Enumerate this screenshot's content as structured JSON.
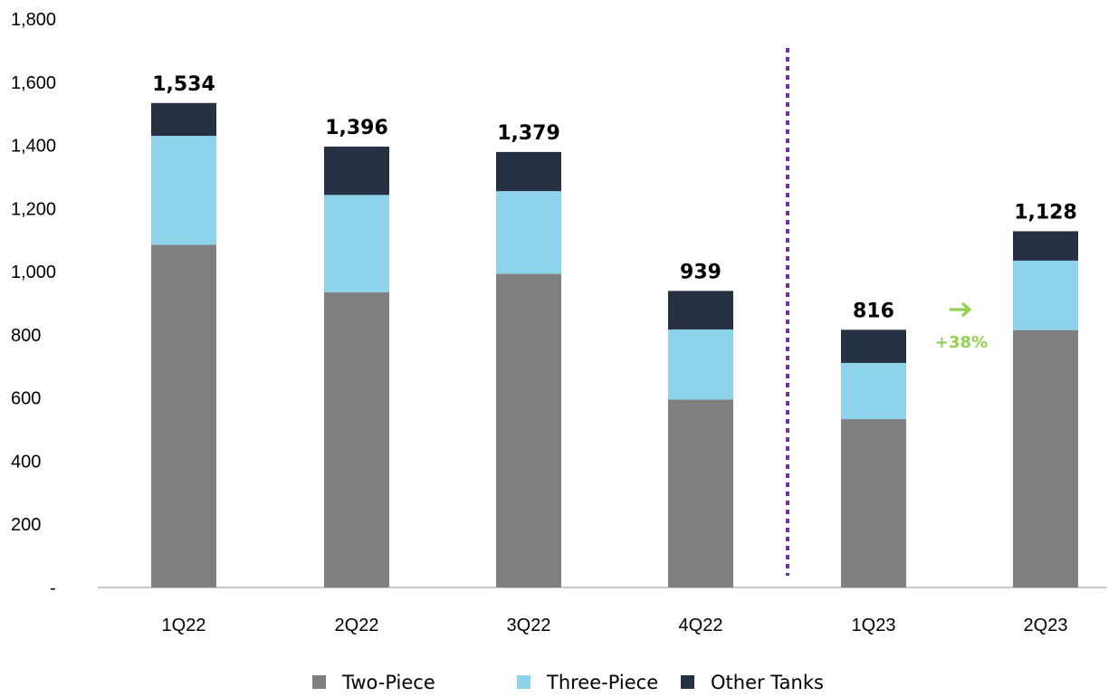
{
  "chart_data": {
    "type": "bar",
    "stacked": true,
    "categories": [
      "1Q22",
      "2Q22",
      "3Q22",
      "4Q22",
      "1Q23",
      "2Q23"
    ],
    "series": [
      {
        "name": "Two-Piece",
        "color": "#7f7f7f",
        "values": [
          1085,
          935,
          993,
          595,
          533,
          815
        ]
      },
      {
        "name": "Three-Piece",
        "color": "#8dd3ec",
        "values": [
          345,
          308,
          262,
          222,
          178,
          220
        ]
      },
      {
        "name": "Other Tanks",
        "color": "#263143",
        "values": [
          104,
          153,
          124,
          122,
          105,
          93
        ]
      }
    ],
    "totals": [
      "1,534",
      "1,396",
      "1,379",
      "939",
      "816",
      "1,128"
    ],
    "ylim": [
      0,
      1800
    ],
    "yticks": [
      0,
      200,
      400,
      600,
      800,
      1000,
      1200,
      1400,
      1600,
      1800
    ],
    "ytick_labels": [
      "-",
      "200",
      "400",
      "600",
      "800",
      "1,000",
      "1,200",
      "1,400",
      "1,600",
      "1,800"
    ],
    "legend_position": "bottom",
    "divider_after_category": "4Q22",
    "divider_color": "#7030a0",
    "annotation": {
      "text": "+38%",
      "icon": "arrow-right-icon",
      "color": "#92d050"
    }
  }
}
